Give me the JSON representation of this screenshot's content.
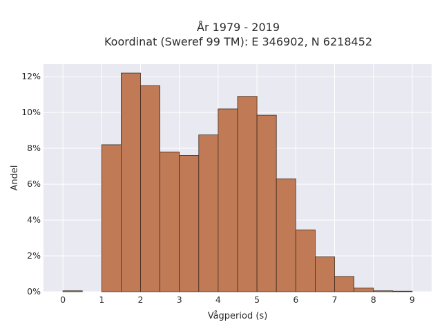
{
  "chart_data": {
    "type": "bar",
    "title": "År 1979 - 2019",
    "subtitle": "Koordinat (Sweref 99 TM): E 346902, N 6218452",
    "xlabel": "Vågperiod (s)",
    "ylabel": "Andel",
    "x_ticks": [
      "0",
      "1",
      "2",
      "3",
      "4",
      "5",
      "6",
      "7",
      "8",
      "9"
    ],
    "y_ticks": [
      "0%",
      "2%",
      "4%",
      "6%",
      "8%",
      "10%",
      "12%"
    ],
    "xlim": [
      -0.5,
      9.5
    ],
    "ylim": [
      0,
      12.7
    ],
    "bin_width": 0.5,
    "bins": [
      {
        "x0": 0.0,
        "value": 0.05
      },
      {
        "x0": 0.5,
        "value": 0.0
      },
      {
        "x0": 1.0,
        "value": 8.2
      },
      {
        "x0": 1.5,
        "value": 12.2
      },
      {
        "x0": 2.0,
        "value": 11.5
      },
      {
        "x0": 2.5,
        "value": 7.8
      },
      {
        "x0": 3.0,
        "value": 7.6
      },
      {
        "x0": 3.5,
        "value": 8.75
      },
      {
        "x0": 4.0,
        "value": 10.2
      },
      {
        "x0": 4.5,
        "value": 10.9
      },
      {
        "x0": 5.0,
        "value": 9.85
      },
      {
        "x0": 5.5,
        "value": 6.3
      },
      {
        "x0": 6.0,
        "value": 3.45
      },
      {
        "x0": 6.5,
        "value": 1.95
      },
      {
        "x0": 7.0,
        "value": 0.85
      },
      {
        "x0": 7.5,
        "value": 0.2
      },
      {
        "x0": 8.0,
        "value": 0.05
      },
      {
        "x0": 8.5,
        "value": 0.03
      }
    ],
    "bar_color": "#c07a55",
    "bar_edge_color": "#3f2a1c",
    "plot_background": "#e9e9f1",
    "grid": true,
    "legend": "none"
  }
}
